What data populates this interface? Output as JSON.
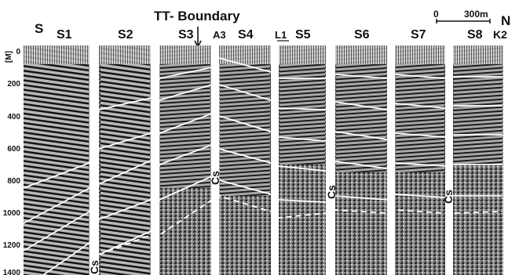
{
  "title": "TT- Boundary",
  "direction_left": "S",
  "direction_right": "N",
  "scale_bar": {
    "start": "0",
    "end": "300m"
  },
  "depth_axis": {
    "unit": "[M]",
    "ticks": [
      "0",
      "200",
      "400",
      "600",
      "800",
      "1000",
      "1200",
      "1400"
    ]
  },
  "panels": [
    "S1",
    "S2",
    "S3",
    "A3",
    "S4",
    "L1",
    "S5",
    "S6",
    "S7",
    "S8",
    "K2"
  ],
  "annotations": [
    "Cs",
    "Cs",
    "Cs",
    "Cs"
  ],
  "colors": {
    "background": "#ffffff",
    "seismic_dark": "#1a1a1a",
    "seismic_mid": "#7a7a7a",
    "horizon": "#ffffff"
  }
}
